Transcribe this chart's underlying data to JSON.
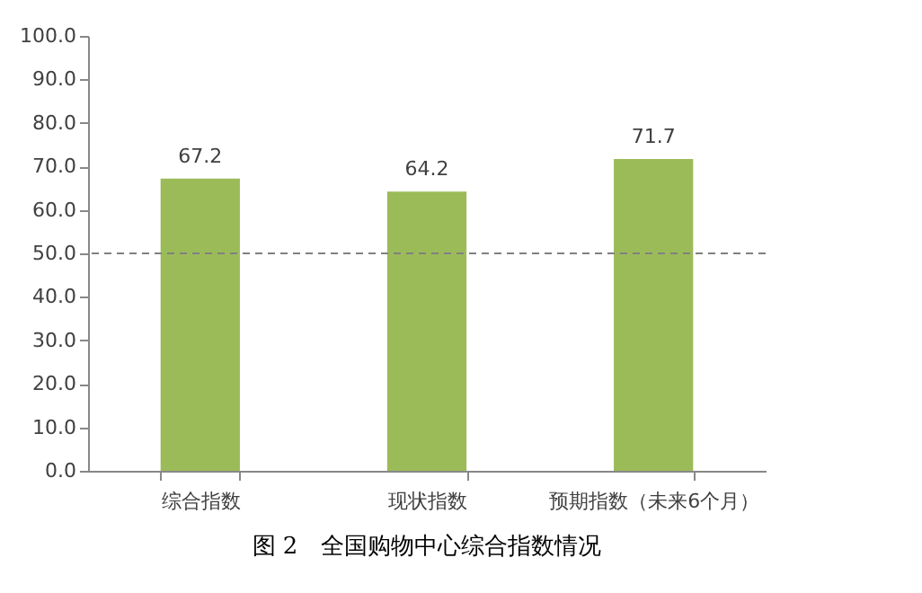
{
  "chart_data": {
    "type": "bar",
    "title": "图 2　全国购物中心综合指数情况",
    "categories": [
      "综合指数",
      "现状指数",
      "预期指数（未来6个月）"
    ],
    "values": [
      67.2,
      64.2,
      71.7
    ],
    "color": "#9bbb59",
    "data_labels": true,
    "ylim": [
      0,
      100
    ],
    "yticks": [
      {
        "value": 0,
        "label": "0.0"
      },
      {
        "value": 10,
        "label": "10.0"
      },
      {
        "value": 20,
        "label": "20.0"
      },
      {
        "value": 30,
        "label": "30.0"
      },
      {
        "value": 40,
        "label": "40.0"
      },
      {
        "value": 50,
        "label": "50.0"
      },
      {
        "value": 60,
        "label": "60.0"
      },
      {
        "value": 70,
        "label": "70.0"
      },
      {
        "value": 80,
        "label": "80.0"
      },
      {
        "value": 90,
        "label": "90.0"
      },
      {
        "value": 100,
        "label": "100.0"
      }
    ],
    "ref_lines": [
      {
        "axis": "y",
        "value": 50,
        "color": "#808080",
        "line_style": "dashed"
      }
    ],
    "grid": false
  }
}
